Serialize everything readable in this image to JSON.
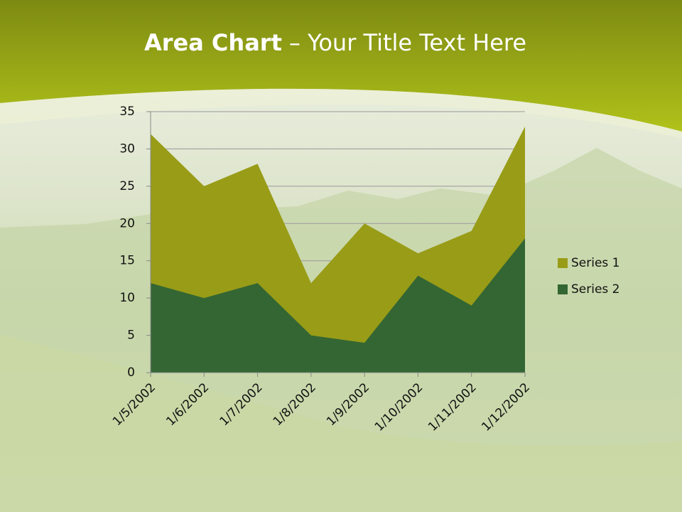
{
  "chart_data": {
    "type": "area",
    "title": {
      "bold": "Area Chart",
      "rest": "– Your Title Text Here"
    },
    "categories": [
      "1/5/2002",
      "1/6/2002",
      "1/7/2002",
      "1/8/2002",
      "1/9/2002",
      "1/10/2002",
      "1/11/2002",
      "1/12/2002"
    ],
    "series": [
      {
        "name": "Series 1",
        "color": "#999c17",
        "values": [
          32,
          25,
          28,
          12,
          20,
          16,
          19,
          33
        ]
      },
      {
        "name": "Series 2",
        "color": "#336633",
        "values": [
          12,
          10,
          12,
          5,
          4,
          13,
          9,
          18
        ]
      }
    ],
    "ylim": [
      0,
      35
    ],
    "yticks": [
      0,
      5,
      10,
      15,
      20,
      25,
      30,
      35
    ],
    "grid": true,
    "legend": "right"
  }
}
